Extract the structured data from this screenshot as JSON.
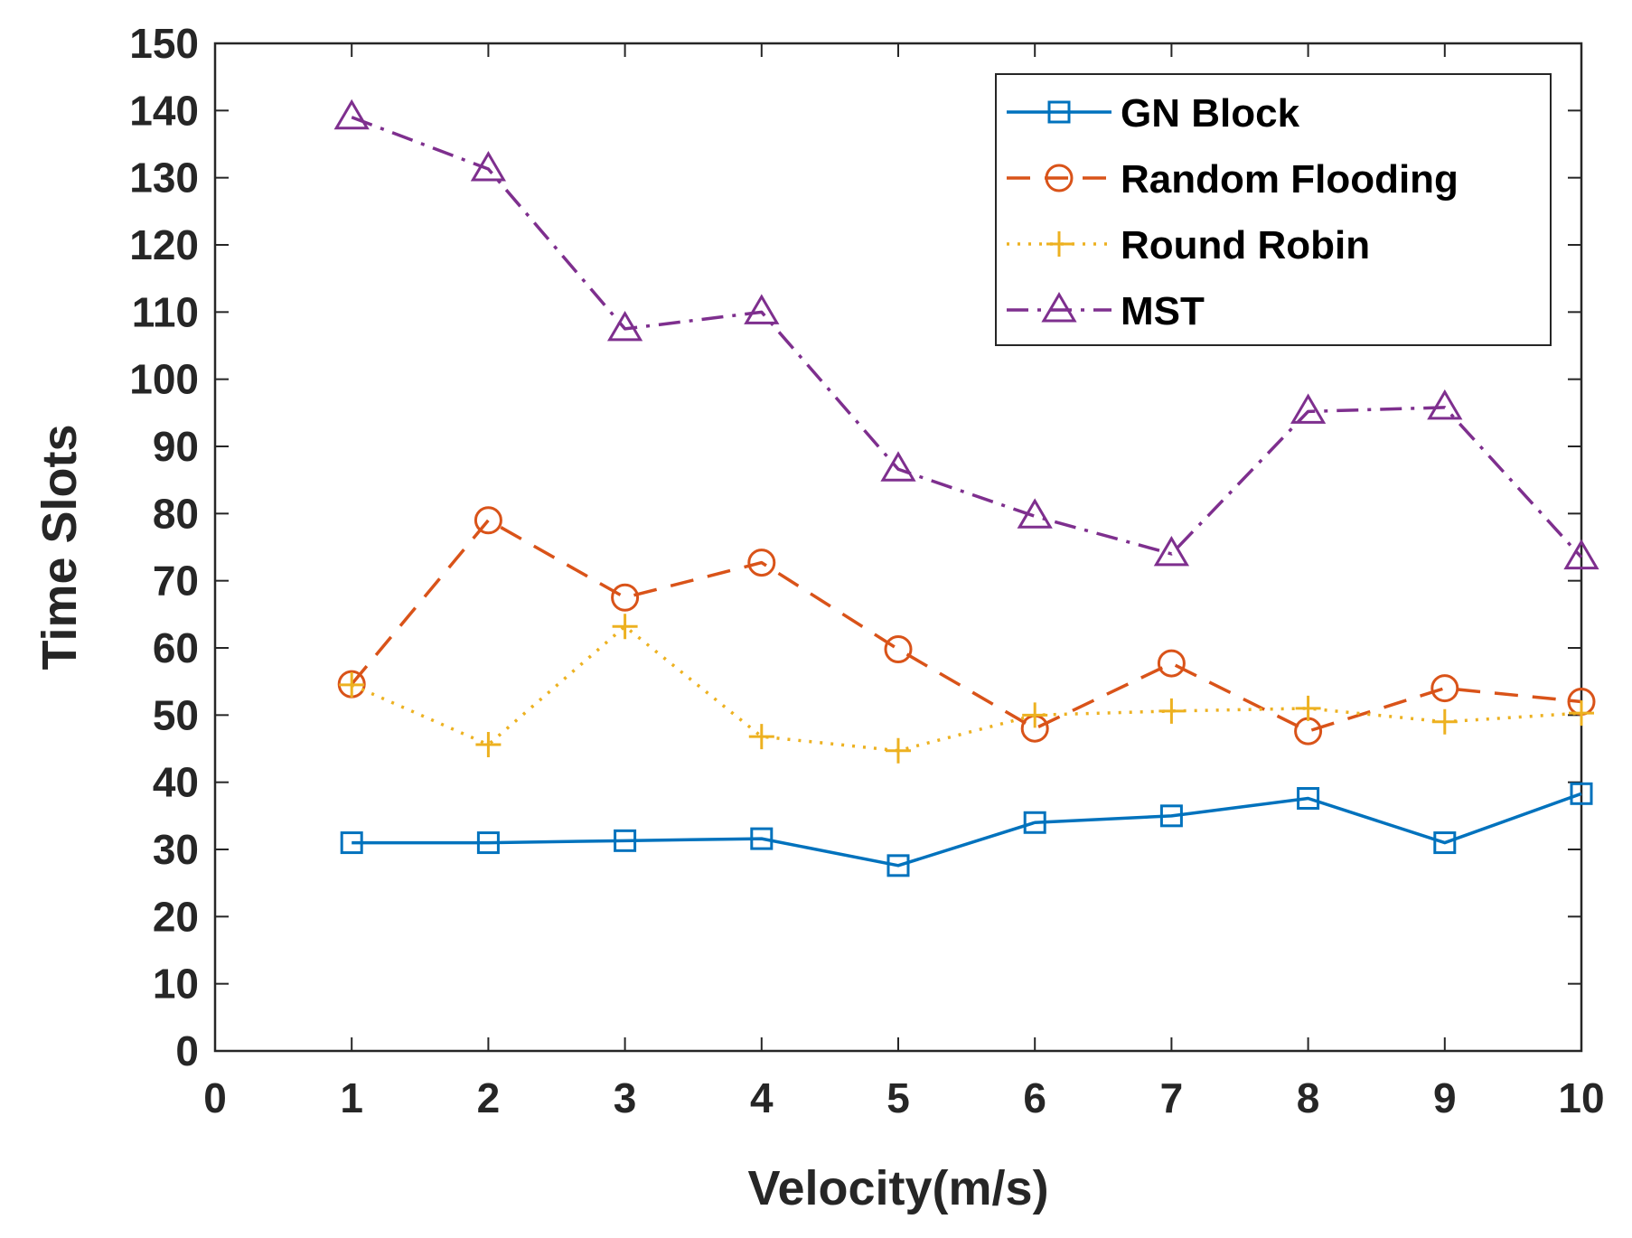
{
  "chart_data": {
    "type": "line",
    "title": "",
    "xlabel": "Velocity(m/s)",
    "ylabel": "Time Slots",
    "xlim": [
      0,
      10
    ],
    "ylim": [
      0,
      150
    ],
    "xticks": [
      "0",
      "1",
      "2",
      "3",
      "4",
      "5",
      "6",
      "7",
      "8",
      "9",
      "10"
    ],
    "yticks": [
      "0",
      "10",
      "20",
      "30",
      "40",
      "50",
      "60",
      "70",
      "80",
      "90",
      "100",
      "110",
      "120",
      "130",
      "140",
      "150"
    ],
    "grid": false,
    "legend_position": "top-right",
    "x": [
      1,
      2,
      3,
      4,
      5,
      6,
      7,
      8,
      9,
      10
    ],
    "series": [
      {
        "name": "GN Block",
        "color": "#0072BD",
        "marker": "square",
        "dash": "solid",
        "values": [
          31,
          31,
          31.3,
          31.6,
          27.6,
          34,
          35,
          37.6,
          31,
          38.3
        ]
      },
      {
        "name": "Random Flooding",
        "color": "#D95319",
        "marker": "circle",
        "dash": "dashed",
        "values": [
          54.6,
          79,
          67.5,
          72.7,
          59.8,
          48,
          57.7,
          47.6,
          54,
          52
        ]
      },
      {
        "name": "Round Robin",
        "color": "#EDB120",
        "marker": "plus",
        "dash": "dotted",
        "values": [
          54.5,
          45.6,
          63.2,
          46.8,
          44.7,
          50,
          50.6,
          51,
          49,
          50.3
        ]
      },
      {
        "name": "MST",
        "color": "#7E2F8E",
        "marker": "triangle",
        "dash": "dashdot",
        "values": [
          139,
          131.3,
          107.5,
          110,
          86.6,
          79.6,
          74,
          95.2,
          95.8,
          73.5
        ]
      }
    ]
  }
}
